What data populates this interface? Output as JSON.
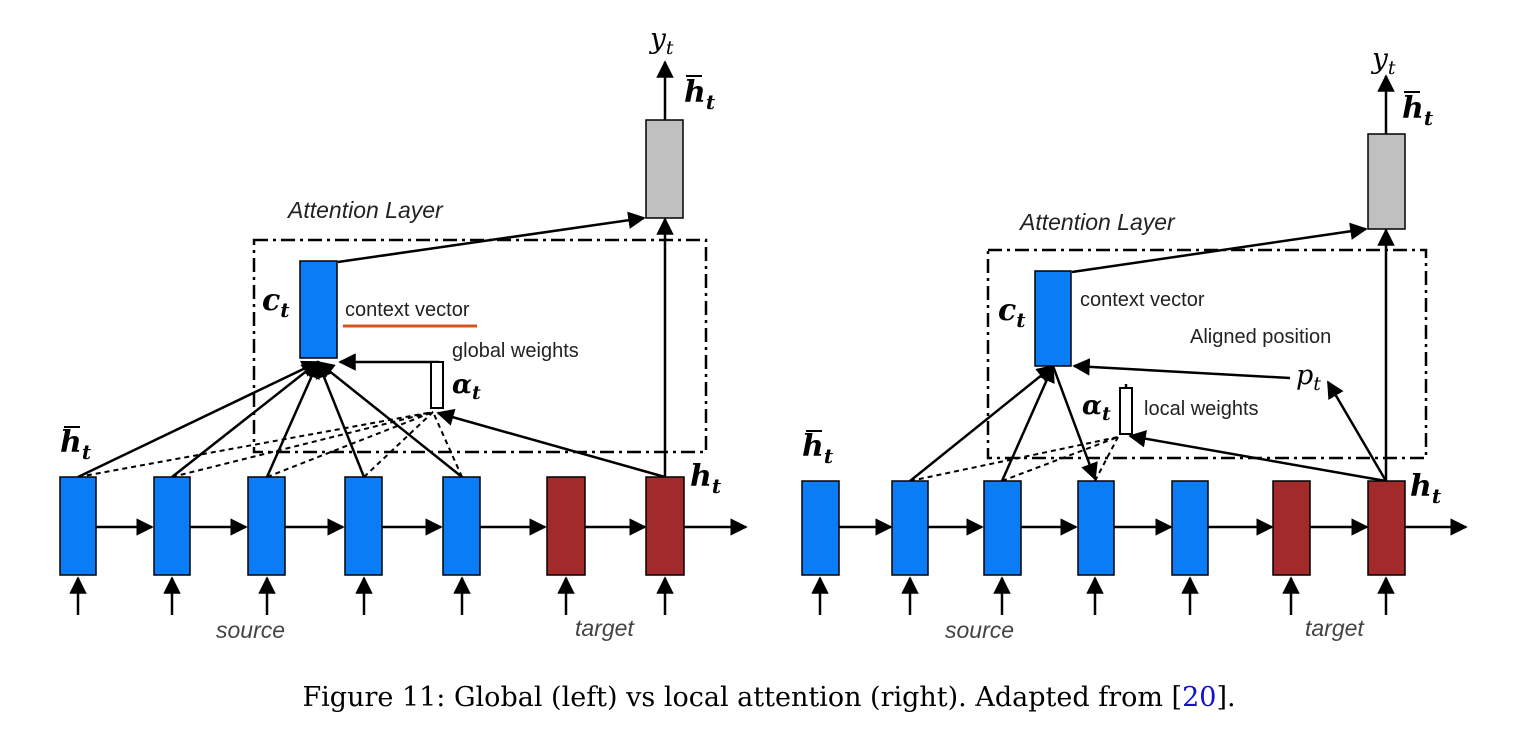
{
  "left": {
    "output": "y",
    "output_sub": "t",
    "attn_hidden": "h",
    "attn_hidden_sub": "t",
    "layer_label": "Attention Layer",
    "context_symbol": "c",
    "context_sub": "t",
    "context_label": "context vector",
    "weights_label": "global weights",
    "alpha": "α",
    "alpha_sub": "t",
    "source_hidden": "h",
    "source_hidden_sub": "t",
    "target_hidden": "h",
    "target_hidden_sub": "t",
    "source_label": "source",
    "target_label": "target"
  },
  "right": {
    "output": "y",
    "output_sub": "t",
    "attn_hidden": "h",
    "attn_hidden_sub": "t",
    "layer_label": "Attention Layer",
    "context_symbol": "c",
    "context_sub": "t",
    "context_label": "context vector",
    "aligned_label": "Aligned position",
    "position_symbol": "p",
    "position_sub": "t",
    "weights_label": "local weights",
    "alpha": "α",
    "alpha_sub": "t",
    "source_hidden": "h",
    "source_hidden_sub": "t",
    "target_hidden": "h",
    "target_hidden_sub": "t",
    "source_label": "source",
    "target_label": "target"
  },
  "colors": {
    "source_cell": "#0a7cf5",
    "target_cell": "#a32a2a",
    "output_cell": "#c0c0c0",
    "context_underline": "#d9531e"
  },
  "caption": {
    "text": "Figure 11: Global (left) vs local attention (right). Adapted from [",
    "ref": "20",
    "end": "]."
  }
}
